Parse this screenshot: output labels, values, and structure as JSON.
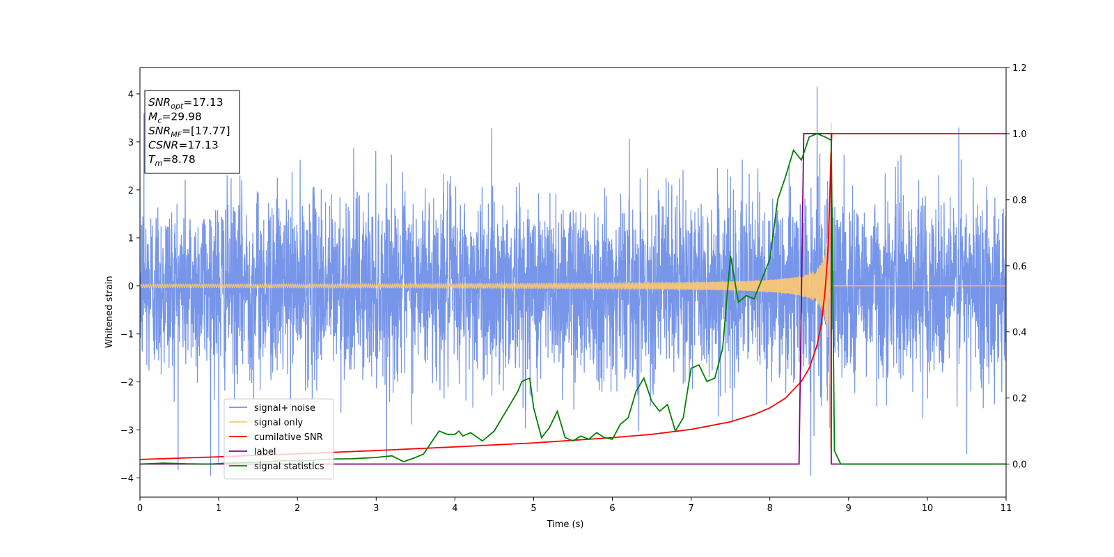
{
  "chart_data": {
    "type": "line",
    "xlabel": "Time (s)",
    "ylabel_left": "Whitened strain",
    "ylabel_right": "",
    "xlim": [
      0,
      11
    ],
    "ylim_left": [
      -4.4,
      4.55
    ],
    "ylim_right": [
      -0.1,
      1.2
    ],
    "x_ticks": [
      "0",
      "1",
      "2",
      "3",
      "4",
      "5",
      "6",
      "7",
      "8",
      "9",
      "10",
      "11"
    ],
    "y_left_ticks": [
      "−4",
      "−3",
      "−2",
      "−1",
      "0",
      "1",
      "2",
      "3",
      "4"
    ],
    "y_right_ticks": [
      "0.0",
      "0.2",
      "0.4",
      "0.6",
      "0.8",
      "1.0",
      "1.2"
    ],
    "grid": false,
    "legend_position": "lower-left",
    "legend": [
      {
        "label": "signal+ noise",
        "color": "#7090e8"
      },
      {
        "label": "signal only",
        "color": "#ffc870"
      },
      {
        "label": "cumilative SNR",
        "color": "#ff0000"
      },
      {
        "label": "label",
        "color": "#800080"
      },
      {
        "label": "signal statistics",
        "color": "#008000"
      }
    ],
    "annotation": {
      "snr_opt": {
        "symbol": "SNR",
        "subscript": "opt",
        "value": "=17.13"
      },
      "mc": {
        "symbol": "M",
        "subscript": "c",
        "value": "=29.98"
      },
      "snr_mf": {
        "symbol": "SNR",
        "subscript": "MF",
        "value": "=[17.77]"
      },
      "csnr": {
        "symbol": "CSNR",
        "value": "=17.13"
      },
      "tm": {
        "symbol": "T",
        "subscript": "m",
        "value": "=8.78"
      }
    },
    "series": [
      {
        "name": "signal+ noise",
        "axis": "left",
        "color": "#7090e8",
        "description": "whitened strain (noise) with typical amplitude about ±1.7 and peaks to about ±3.4, spanning t=0 to 11 s",
        "noise_sigma": 0.95,
        "extremes": [
          [
            1.0,
            -3.7
          ],
          [
            8.6,
            4.15
          ],
          [
            8.52,
            -3.95
          ],
          [
            10.4,
            3.3
          ],
          [
            10.5,
            -3.5
          ],
          [
            0.05,
            3.6
          ]
        ]
      },
      {
        "name": "signal only",
        "axis": "left",
        "color": "#ffc870",
        "description": "chirp that grows in amplitude toward merger, ending at t=8.78 s",
        "merger_time": 8.78,
        "peak_amplitude": 3.5
      },
      {
        "name": "cumilative SNR",
        "axis": "right",
        "color": "#ff0000",
        "x": [
          0,
          1,
          2,
          3,
          4,
          5,
          6,
          6.5,
          7,
          7.5,
          7.8,
          8.0,
          8.2,
          8.4,
          8.5,
          8.6,
          8.65,
          8.7,
          8.74,
          8.77,
          8.78,
          11
        ],
        "values": [
          0.014,
          0.022,
          0.031,
          0.041,
          0.052,
          0.064,
          0.08,
          0.09,
          0.105,
          0.128,
          0.15,
          0.17,
          0.2,
          0.25,
          0.29,
          0.36,
          0.42,
          0.52,
          0.65,
          0.88,
          1.0,
          1.0
        ]
      },
      {
        "name": "label",
        "axis": "right",
        "color": "#800080",
        "x": [
          0,
          8.37,
          8.43,
          8.78,
          8.78,
          11
        ],
        "values": [
          0,
          0,
          1,
          1,
          0,
          0
        ]
      },
      {
        "name": "signal statistics",
        "axis": "right",
        "color": "#008000",
        "x": [
          0,
          0.3,
          0.6,
          0.9,
          1.2,
          1.5,
          1.8,
          2.1,
          2.4,
          2.7,
          3.0,
          3.2,
          3.35,
          3.5,
          3.6,
          3.8,
          3.9,
          4.0,
          4.05,
          4.1,
          4.2,
          4.35,
          4.5,
          4.6,
          4.7,
          4.8,
          4.85,
          4.9,
          4.95,
          5.0,
          5.1,
          5.2,
          5.3,
          5.4,
          5.5,
          5.6,
          5.7,
          5.8,
          5.9,
          6.0,
          6.1,
          6.2,
          6.3,
          6.4,
          6.5,
          6.6,
          6.7,
          6.8,
          6.9,
          7.0,
          7.1,
          7.2,
          7.3,
          7.4,
          7.5,
          7.6,
          7.7,
          7.8,
          7.9,
          8.0,
          8.1,
          8.2,
          8.3,
          8.4,
          8.5,
          8.6,
          8.7,
          8.78,
          8.82,
          8.9,
          9.5,
          11
        ],
        "values": [
          0.0,
          0.003,
          0.001,
          0.0,
          0.004,
          0.006,
          0.01,
          0.01,
          0.015,
          0.016,
          0.02,
          0.025,
          0.007,
          0.02,
          0.03,
          0.1,
          0.09,
          0.09,
          0.1,
          0.085,
          0.095,
          0.07,
          0.1,
          0.14,
          0.18,
          0.22,
          0.25,
          0.255,
          0.26,
          0.17,
          0.08,
          0.11,
          0.16,
          0.08,
          0.07,
          0.085,
          0.075,
          0.095,
          0.08,
          0.075,
          0.12,
          0.14,
          0.22,
          0.26,
          0.19,
          0.16,
          0.18,
          0.1,
          0.14,
          0.29,
          0.3,
          0.25,
          0.26,
          0.35,
          0.63,
          0.49,
          0.51,
          0.5,
          0.56,
          0.62,
          0.8,
          0.87,
          0.95,
          0.92,
          0.99,
          1.0,
          0.99,
          0.98,
          0.04,
          0.0,
          0.0,
          0.0
        ]
      }
    ]
  }
}
